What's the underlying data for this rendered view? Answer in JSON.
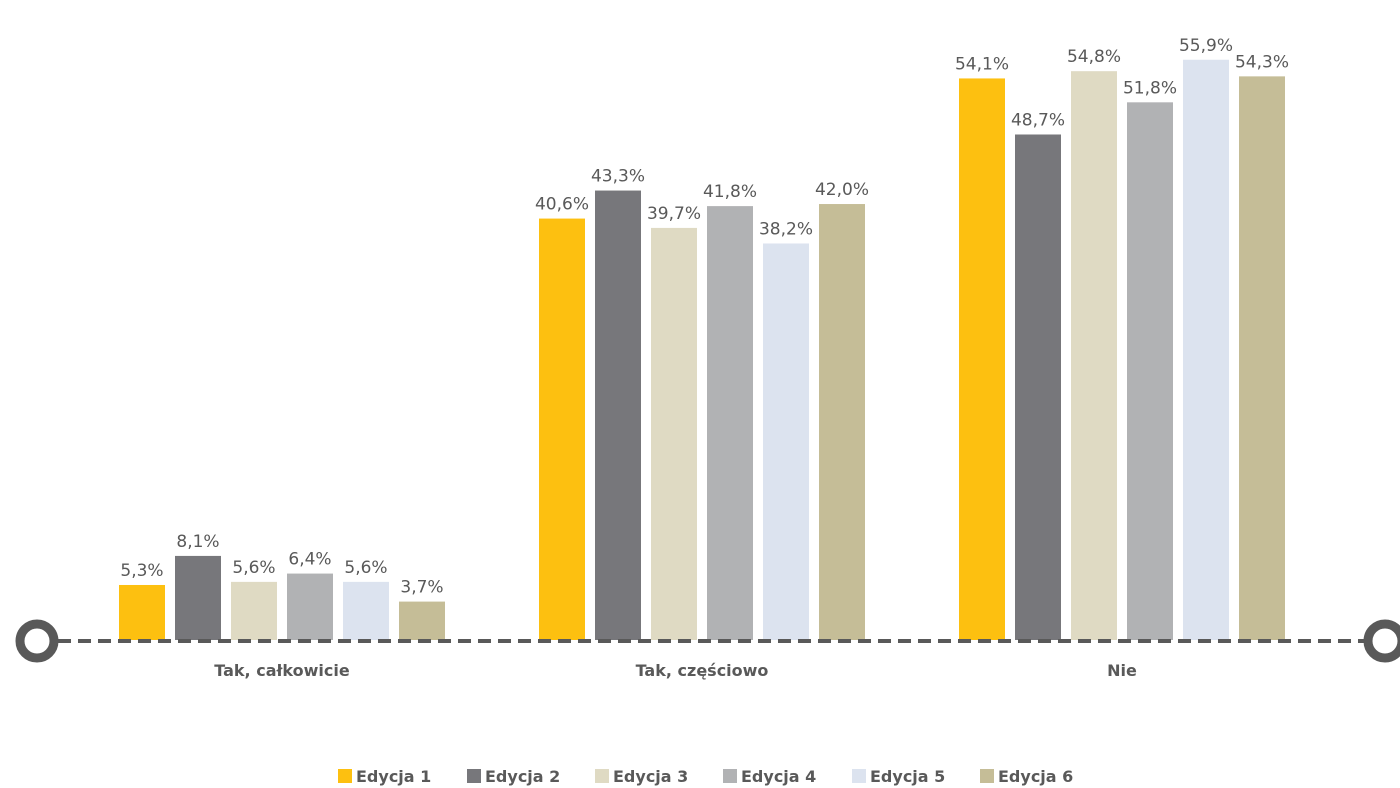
{
  "chart_data": {
    "type": "bar",
    "categories": [
      "Tak, całkowicie",
      "Tak, częściowo",
      "Nie"
    ],
    "series": [
      {
        "name": "Edycja 1",
        "color": "#FDC010",
        "values": [
          5.3,
          40.6,
          54.1
        ],
        "labels": [
          "5,3%",
          "40,6%",
          "54,1%"
        ]
      },
      {
        "name": "Edycja 2",
        "color": "#77777B",
        "values": [
          8.1,
          43.3,
          48.7
        ],
        "labels": [
          "8,1%",
          "43,3%",
          "48,7%"
        ]
      },
      {
        "name": "Edycja 3",
        "color": "#DFDAC3",
        "values": [
          5.6,
          39.7,
          54.8
        ],
        "labels": [
          "5,6%",
          "39,7%",
          "54,8%"
        ]
      },
      {
        "name": "Edycja 4",
        "color": "#B1B2B4",
        "values": [
          6.4,
          41.8,
          51.8
        ],
        "labels": [
          "6,4%",
          "41,8%",
          "51,8%"
        ]
      },
      {
        "name": "Edycja 5",
        "color": "#DCE3EF",
        "values": [
          5.6,
          38.2,
          55.9
        ],
        "labels": [
          "5,6%",
          "38,2%",
          "55,9%"
        ]
      },
      {
        "name": "Edycja 6",
        "color": "#C5BD97",
        "values": [
          3.7,
          42.0,
          54.3
        ],
        "labels": [
          "3,7%",
          "42,0%",
          "54,3%"
        ]
      }
    ],
    "ylim": [
      0,
      60
    ],
    "legend_position": "bottom",
    "grid": false,
    "axis_line_color": "#595959"
  }
}
